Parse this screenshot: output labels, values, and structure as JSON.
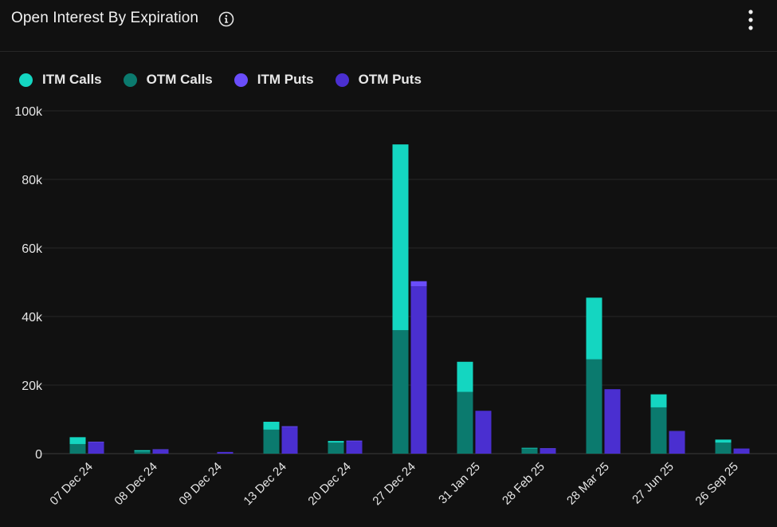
{
  "header": {
    "title": "Open Interest By Expiration",
    "info_icon": "info-circle-icon",
    "menu_icon": "kebab-menu-icon"
  },
  "legend": [
    {
      "label": "ITM Calls",
      "color": "#14d6c1"
    },
    {
      "label": "OTM Calls",
      "color": "#0b7a6e"
    },
    {
      "label": "ITM Puts",
      "color": "#6a4dfb"
    },
    {
      "label": "OTM Puts",
      "color": "#4a2fd0"
    }
  ],
  "chart_data": {
    "type": "bar",
    "stacked": true,
    "categories": [
      "07 Dec 24",
      "08 Dec 24",
      "09 Dec 24",
      "13 Dec 24",
      "20 Dec 24",
      "27 Dec 24",
      "31 Jan 25",
      "28 Feb 25",
      "28 Mar 25",
      "27 Jun 25",
      "26 Sep 25"
    ],
    "ylim": [
      0,
      100000
    ],
    "yticks": [
      0,
      20000,
      40000,
      60000,
      80000,
      100000
    ],
    "ytick_labels": [
      "0",
      "20k",
      "40k",
      "60k",
      "80k",
      "100k"
    ],
    "grid": true,
    "legend_position": "top-left",
    "stacks": [
      {
        "name": "Calls",
        "series": [
          {
            "name": "OTM Calls",
            "values": [
              2800,
              700,
              0,
              7000,
              3200,
              36000,
              18000,
              1500,
              27500,
              13500,
              3200
            ]
          },
          {
            "name": "ITM Calls",
            "values": [
              2000,
              300,
              0,
              2300,
              500,
              54200,
              8800,
              200,
              18000,
              3800,
              900
            ]
          }
        ]
      },
      {
        "name": "Puts",
        "series": [
          {
            "name": "OTM Puts",
            "values": [
              3300,
              1200,
              500,
              7800,
              3600,
              48800,
              12500,
              1500,
              18800,
              6500,
              1500
            ]
          },
          {
            "name": "ITM Puts",
            "values": [
              200,
              100,
              0,
              200,
              200,
              1500,
              0,
              100,
              0,
              100,
              0
            ]
          }
        ]
      }
    ]
  }
}
